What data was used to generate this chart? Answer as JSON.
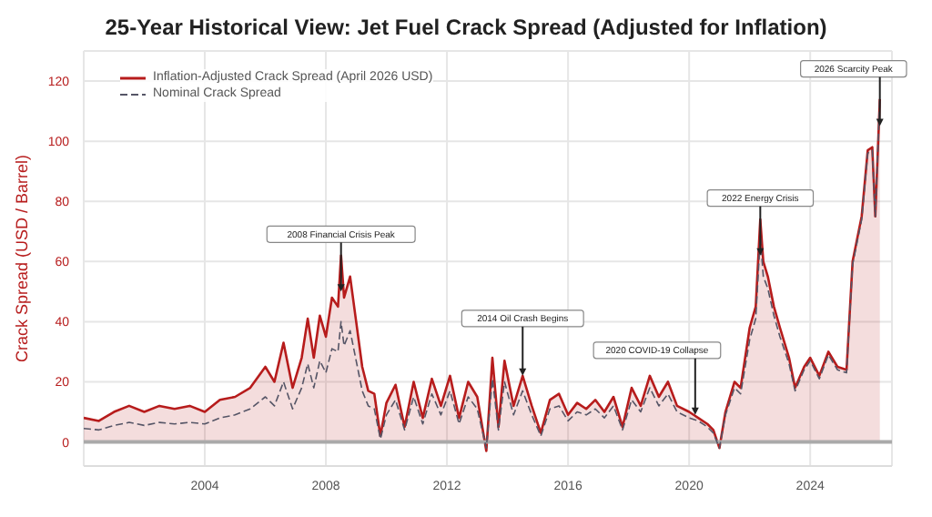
{
  "chart_data": {
    "type": "line",
    "title": "25-Year Historical View: Jet Fuel Crack Spread (Adjusted for Inflation)",
    "ylabel": "Crack Spread (USD / Barrel)",
    "x": [
      2000,
      2000.5,
      2001,
      2001.5,
      2002,
      2002.5,
      2003,
      2003.5,
      2004,
      2004.5,
      2005,
      2005.5,
      2006,
      2006.3,
      2006.6,
      2006.9,
      2007.2,
      2007.4,
      2007.6,
      2007.8,
      2008,
      2008.2,
      2008.4,
      2008.5,
      2008.6,
      2008.8,
      2009,
      2009.2,
      2009.4,
      2009.6,
      2009.8,
      2010,
      2010.3,
      2010.6,
      2010.9,
      2011.2,
      2011.5,
      2011.8,
      2012.1,
      2012.4,
      2012.7,
      2013,
      2013.3,
      2013.5,
      2013.7,
      2013.9,
      2014.2,
      2014.5,
      2014.8,
      2015.1,
      2015.4,
      2015.7,
      2016,
      2016.3,
      2016.6,
      2016.9,
      2017.2,
      2017.5,
      2017.8,
      2018.1,
      2018.4,
      2018.7,
      2019,
      2019.3,
      2019.6,
      2020,
      2020.3,
      2020.6,
      2020.8,
      2021,
      2021.2,
      2021.5,
      2021.7,
      2022,
      2022.2,
      2022.35,
      2022.45,
      2022.6,
      2022.8,
      2023,
      2023.3,
      2023.5,
      2023.8,
      2024,
      2024.3,
      2024.6,
      2024.9,
      2025.2,
      2025.4,
      2025.7,
      2025.9,
      2026.05,
      2026.15,
      2026.3
    ],
    "series": [
      {
        "name": "Inflation-Adjusted Crack Spread (April 2026 USD)",
        "type": "area",
        "color": "#b71c1c",
        "values": [
          8,
          7,
          10,
          12,
          10,
          12,
          11,
          12,
          10,
          14,
          15,
          18,
          25,
          20,
          33,
          18,
          28,
          41,
          28,
          42,
          35,
          48,
          45,
          62,
          48,
          55,
          40,
          25,
          17,
          16,
          2,
          13,
          19,
          5,
          20,
          8,
          21,
          12,
          22,
          8,
          20,
          15,
          -3,
          28,
          5,
          27,
          12,
          22,
          12,
          3,
          14,
          16,
          9,
          13,
          11,
          14,
          10,
          15,
          5,
          18,
          12,
          22,
          15,
          20,
          12,
          10,
          8,
          6,
          4,
          -2,
          10,
          20,
          18,
          38,
          45,
          74,
          60,
          55,
          45,
          38,
          28,
          18,
          25,
          28,
          22,
          30,
          25,
          24,
          60,
          75,
          97,
          98,
          75,
          114
        ]
      },
      {
        "name": "Nominal Crack Spread",
        "line_style": "dashed",
        "color": "#555566",
        "values": [
          4.5,
          4,
          5.5,
          6.5,
          5.5,
          6.5,
          6,
          6.5,
          6,
          8,
          9,
          11,
          15,
          12,
          20,
          11,
          18,
          26,
          18,
          27,
          23,
          31,
          30,
          40,
          32,
          37,
          27,
          17,
          12,
          11,
          1,
          9,
          14,
          4,
          15,
          6,
          16,
          9,
          17,
          6,
          15,
          11,
          -2,
          21,
          4,
          20,
          9,
          17,
          9,
          2,
          11,
          12,
          7,
          10,
          9,
          11,
          8,
          12,
          4,
          14,
          10,
          18,
          12,
          16,
          10,
          8,
          7,
          5,
          3,
          -2,
          9,
          18,
          16,
          34,
          41,
          68,
          55,
          51,
          42,
          35,
          26,
          17,
          24,
          27,
          21,
          29,
          24,
          23,
          59,
          74,
          96,
          97,
          75,
          114
        ]
      }
    ],
    "xlim": [
      2000,
      2026.7
    ],
    "xticks": [
      2004,
      2008,
      2012,
      2016,
      2020,
      2024
    ],
    "ylim": [
      -8,
      130
    ],
    "yticks": [
      0,
      20,
      40,
      60,
      80,
      100,
      120
    ],
    "ref_lines": [
      {
        "axis": "y",
        "value": 0,
        "color": "#aaaaaa"
      }
    ],
    "annotations": [
      {
        "text": "2008 Financial Crisis Peak",
        "x": 2008.5,
        "y": 50
      },
      {
        "text": "2014 Oil Crash Begins",
        "x": 2014.5,
        "y": 22
      },
      {
        "text": "2020 COVID-19 Collapse",
        "x": 2020.2,
        "y": 9
      },
      {
        "text": "2022 Energy Crisis",
        "x": 2022.35,
        "y": 62
      },
      {
        "text": "2026 Scarcity Peak",
        "x": 2026.3,
        "y": 105
      }
    ],
    "grid": true,
    "legend": "top left"
  }
}
